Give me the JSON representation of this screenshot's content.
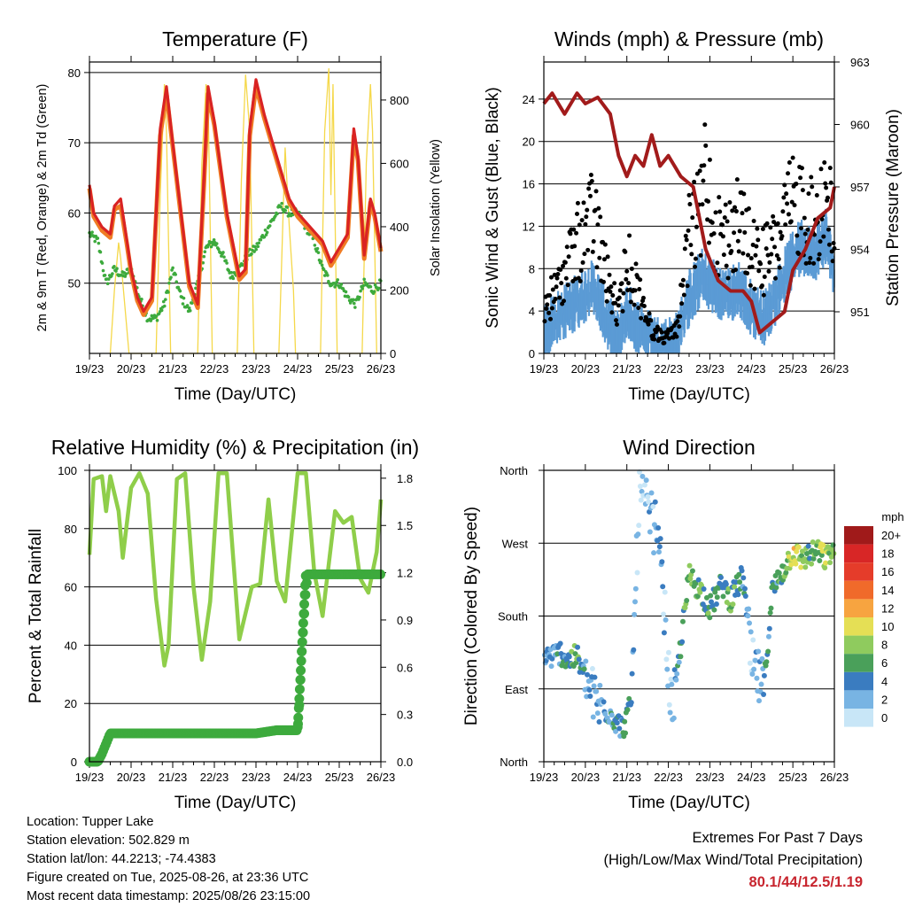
{
  "chart_data": [
    {
      "type": "line",
      "title": "Temperature (F)",
      "xlabel": "Time (Day/UTC)",
      "ylabel": "2m & 9m T (Red, Orange) & 2m Td (Green)",
      "y2label": "Solar Insolation (Yellow)",
      "x_ticks": [
        "19/23",
        "20/23",
        "21/23",
        "22/23",
        "23/23",
        "24/23",
        "25/23",
        "26/23"
      ],
      "y_ticks": [
        50,
        60,
        70,
        80
      ],
      "y2_ticks": [
        0,
        200,
        400,
        600,
        800
      ],
      "ylim": [
        40,
        81.5
      ],
      "y2lim": [
        0,
        920
      ],
      "grid": true,
      "series": [
        {
          "name": "2m T",
          "color": "#d92323",
          "x": [
            0,
            0.1,
            0.3,
            0.5,
            0.6,
            0.75,
            0.9,
            1.0,
            1.15,
            1.3,
            1.5,
            1.7,
            1.85,
            2.0,
            2.2,
            2.4,
            2.6,
            2.75,
            2.85,
            3.0,
            3.3,
            3.6,
            3.75,
            3.85,
            4.0,
            4.2,
            4.4,
            4.6,
            4.8,
            5.0,
            5.3,
            5.6,
            5.8,
            6.0,
            6.2,
            6.35,
            6.45,
            6.6,
            6.75,
            6.85,
            7.0
          ],
          "y": [
            64,
            60,
            58,
            57,
            61,
            62,
            56,
            52,
            48,
            46,
            48,
            72,
            78,
            70,
            60,
            50,
            47,
            65,
            78,
            73,
            60,
            51,
            52,
            72,
            79,
            74,
            70,
            66,
            62,
            60,
            58,
            56,
            53,
            55,
            57,
            72,
            68,
            54,
            62,
            60,
            55
          ]
        },
        {
          "name": "9m T",
          "color": "#f07c24",
          "x": [
            0,
            0.1,
            0.3,
            0.5,
            0.6,
            0.75,
            0.9,
            1.0,
            1.15,
            1.3,
            1.5,
            1.7,
            1.85,
            2.0,
            2.2,
            2.4,
            2.6,
            2.75,
            2.85,
            3.0,
            3.3,
            3.6,
            3.75,
            3.85,
            4.0,
            4.2,
            4.4,
            4.6,
            4.8,
            5.0,
            5.3,
            5.6,
            5.8,
            6.0,
            6.2,
            6.35,
            6.45,
            6.6,
            6.75,
            6.85,
            7.0
          ],
          "y": [
            63.5,
            59.5,
            57.5,
            56.5,
            60.5,
            61,
            55.5,
            51.5,
            47.5,
            45.5,
            47.5,
            71,
            77,
            69.5,
            59.5,
            49.5,
            46.5,
            64,
            77,
            72.5,
            59.5,
            50.5,
            51.5,
            71,
            78,
            73.5,
            69.5,
            65.5,
            61.5,
            59.5,
            57.5,
            55.5,
            52.5,
            54.5,
            56.5,
            71,
            67.5,
            53.5,
            61.5,
            59.5,
            54.5
          ]
        },
        {
          "name": "2m Td",
          "color": "#3daa3d",
          "x": [
            0,
            0.2,
            0.4,
            0.6,
            0.8,
            1.0,
            1.2,
            1.4,
            1.6,
            1.8,
            2.0,
            2.2,
            2.4,
            2.6,
            2.8,
            3.0,
            3.2,
            3.4,
            3.6,
            3.8,
            4.0,
            4.2,
            4.4,
            4.6,
            4.8,
            5.0,
            5.2,
            5.4,
            5.6,
            5.8,
            6.0,
            6.2,
            6.4,
            6.6,
            6.8,
            7.0
          ],
          "y": [
            57,
            56,
            50,
            52,
            51,
            52,
            48,
            45,
            45,
            47,
            52,
            48,
            46,
            50,
            55,
            56,
            54,
            51,
            52,
            54,
            55,
            57,
            59,
            61,
            60,
            60,
            58,
            56,
            52,
            50,
            50,
            48,
            47,
            50,
            49,
            50
          ]
        },
        {
          "name": "Solar Insolation",
          "color": "#f5d84a",
          "axis": "y2",
          "x": [
            0.5,
            0.6,
            0.7,
            0.75,
            0.85,
            0.95,
            1.6,
            1.7,
            1.8,
            1.85,
            1.95,
            2.6,
            2.7,
            2.8,
            2.85,
            2.95,
            3.55,
            3.65,
            3.75,
            3.85,
            3.95,
            4.55,
            4.7,
            4.8,
            4.9,
            4.95,
            5.55,
            5.65,
            5.75,
            5.8,
            5.85,
            5.95,
            6.55,
            6.65,
            6.75,
            6.8,
            6.9
          ],
          "y": [
            0,
            200,
            350,
            300,
            150,
            0,
            0,
            500,
            850,
            700,
            0,
            0,
            600,
            850,
            800,
            0,
            0,
            550,
            880,
            700,
            0,
            0,
            650,
            400,
            200,
            0,
            0,
            700,
            900,
            500,
            850,
            0,
            0,
            600,
            850,
            700,
            0
          ]
        }
      ]
    },
    {
      "type": "scatter",
      "title": "Winds (mph) & Pressure (mb)",
      "xlabel": "Time (Day/UTC)",
      "ylabel": "Sonic Wind & Gust (Blue, Black)",
      "y2label": "Station Pressure (Maroon)",
      "x_ticks": [
        "19/23",
        "20/23",
        "21/23",
        "22/23",
        "23/23",
        "24/23",
        "25/23",
        "26/23"
      ],
      "y_ticks": [
        0,
        4,
        8,
        12,
        16,
        20,
        24
      ],
      "y2_ticks": [
        951,
        954,
        957,
        960,
        963
      ],
      "ylim": [
        0,
        27.5
      ],
      "y2lim": [
        949,
        963
      ],
      "grid": true,
      "series": [
        {
          "name": "Sonic Wind",
          "color": "#5b9bd5",
          "x": [
            0,
            0.3,
            0.6,
            0.9,
            1.2,
            1.5,
            1.8,
            2.0,
            2.3,
            2.6,
            2.9,
            3.2,
            3.5,
            3.8,
            4.1,
            4.4,
            4.7,
            5.0,
            5.3,
            5.6,
            5.9,
            6.2,
            6.5,
            6.8,
            7.0
          ],
          "y": [
            2,
            3,
            4,
            5,
            6,
            3,
            1,
            4,
            2,
            1,
            0.5,
            1,
            5,
            7,
            6,
            5,
            6,
            4,
            3,
            5,
            8,
            10,
            9,
            11,
            7
          ]
        },
        {
          "name": "Gust",
          "color": "#000000",
          "x": [
            0,
            0.3,
            0.6,
            0.9,
            1.2,
            1.5,
            1.8,
            2.0,
            2.3,
            2.6,
            2.9,
            3.2,
            3.5,
            3.8,
            3.9,
            4.1,
            4.4,
            4.7,
            5.0,
            5.3,
            5.6,
            5.9,
            6.2,
            6.5,
            6.8,
            7.0
          ],
          "y": [
            6,
            8,
            12,
            15,
            18,
            10,
            5,
            12,
            8,
            3,
            2,
            3,
            15,
            18,
            25,
            16,
            15,
            17,
            13,
            12,
            14,
            18,
            20,
            16,
            22,
            14
          ]
        },
        {
          "name": "Station Pressure",
          "color": "#a21b1b",
          "axis": "y2",
          "x": [
            0,
            0.2,
            0.5,
            0.8,
            1.0,
            1.3,
            1.6,
            1.8,
            2.0,
            2.2,
            2.4,
            2.6,
            2.8,
            3.0,
            3.3,
            3.6,
            3.9,
            4.2,
            4.5,
            4.8,
            5.0,
            5.2,
            5.5,
            5.8,
            6.0,
            6.3,
            6.6,
            6.9,
            7.0
          ],
          "y": [
            961,
            961.5,
            960.5,
            961.5,
            961,
            961.3,
            960.5,
            958.5,
            957.5,
            958.5,
            958,
            959.5,
            958,
            958.5,
            957.5,
            957,
            954,
            952.5,
            952,
            952,
            951.5,
            950,
            950.5,
            951,
            953,
            954,
            955.5,
            956,
            957
          ]
        }
      ]
    },
    {
      "type": "line",
      "title": "Relative Humidity (%) & Precipitation (in)",
      "xlabel": "Time (Day/UTC)",
      "ylabel": "Percent & Total Rainfall",
      "x_ticks": [
        "19/23",
        "20/23",
        "21/23",
        "22/23",
        "23/23",
        "24/23",
        "25/23",
        "26/23"
      ],
      "y_ticks": [
        0,
        20,
        40,
        60,
        80,
        100
      ],
      "y2_ticks": [
        "0.0",
        "0.3",
        "0.6",
        "0.9",
        "1.2",
        "1.5",
        "1.8"
      ],
      "ylim": [
        0,
        100
      ],
      "y2lim": [
        0,
        1.85
      ],
      "grid": true,
      "series": [
        {
          "name": "Relative Humidity",
          "color": "#8fce4a",
          "x": [
            0,
            0.1,
            0.3,
            0.4,
            0.5,
            0.7,
            0.8,
            1.0,
            1.2,
            1.4,
            1.6,
            1.8,
            1.9,
            2.1,
            2.3,
            2.5,
            2.7,
            2.9,
            3.1,
            3.3,
            3.6,
            3.9,
            4.1,
            4.3,
            4.5,
            4.7,
            5.0,
            5.2,
            5.4,
            5.6,
            5.9,
            6.1,
            6.3,
            6.5,
            6.7,
            6.9,
            7.0
          ],
          "y": [
            71,
            97,
            98,
            86,
            98,
            86,
            70,
            94,
            99,
            92,
            56,
            33,
            40,
            97,
            99,
            60,
            35,
            55,
            99,
            99,
            42,
            60,
            61,
            90,
            62,
            55,
            99,
            99,
            65,
            50,
            86,
            82,
            84,
            63,
            58,
            72,
            90
          ]
        },
        {
          "name": "Total Rainfall",
          "color": "#3daa3d",
          "axis": "y2",
          "x": [
            0,
            0.2,
            0.3,
            0.5,
            1.0,
            2.0,
            3.0,
            4.0,
            4.5,
            5.0,
            5.05,
            5.1,
            5.15,
            5.2,
            5.25,
            6.0,
            7.0
          ],
          "y": [
            0,
            0,
            0.05,
            0.18,
            0.18,
            0.18,
            0.18,
            0.18,
            0.2,
            0.2,
            0.4,
            0.7,
            0.9,
            1.1,
            1.19,
            1.19,
            1.19
          ]
        }
      ]
    },
    {
      "type": "scatter",
      "title": "Wind Direction",
      "xlabel": "Time (Day/UTC)",
      "ylabel": "Direction (Colored By Speed)",
      "x_ticks": [
        "19/23",
        "20/23",
        "21/23",
        "22/23",
        "23/23",
        "24/23",
        "25/23",
        "26/23"
      ],
      "y_ticks": [
        "North",
        "East",
        "South",
        "West",
        "North"
      ],
      "ylim": [
        0,
        360
      ],
      "grid": true,
      "legend": {
        "title": "mph",
        "labels": [
          "20+",
          "18",
          "16",
          "14",
          "12",
          "10",
          "8",
          "6",
          "4",
          "2",
          "0"
        ],
        "colors": [
          "#a01a1a",
          "#d82626",
          "#e53c2a",
          "#f06a2a",
          "#f7a440",
          "#e5df55",
          "#8fcb5e",
          "#4aa05a",
          "#3a7cc0",
          "#78b4e3",
          "#c8e6f7"
        ],
        "position": "right"
      },
      "series": [
        {
          "name": "direction",
          "x": [
            0.2,
            0.4,
            0.6,
            0.8,
            1.0,
            1.3,
            1.6,
            1.9,
            2.1,
            2.3,
            2.6,
            2.8,
            3.0,
            3.1,
            3.5,
            3.8,
            4.0,
            4.3,
            4.5,
            4.8,
            5.0,
            5.3,
            5.5,
            5.8,
            6.0,
            6.2,
            6.4,
            6.6,
            6.8,
            7.0
          ],
          "y": [
            130,
            135,
            125,
            130,
            100,
            70,
            60,
            40,
            70,
            330,
            300,
            270,
            110,
            60,
            230,
            210,
            190,
            220,
            200,
            230,
            120,
            90,
            210,
            240,
            260,
            250,
            255,
            260,
            250,
            265
          ],
          "speed": [
            3,
            4,
            5,
            7,
            3,
            2,
            4,
            4,
            5,
            1,
            2,
            4,
            1,
            2,
            8,
            6,
            5,
            4,
            7,
            4,
            2,
            3,
            4,
            6,
            10,
            8,
            6,
            7,
            9,
            7
          ]
        }
      ]
    }
  ],
  "footer": {
    "location": "Location: Tupper Lake",
    "elevation": "Station elevation: 502.829 m",
    "latlon": "Station lat/lon: 44.2213; -74.4383",
    "created": "Figure created on Tue, 2025-08-26, at 23:36 UTC",
    "recent": "Most recent data timestamp: 2025/08/26 23:15:00",
    "extremes_title": "Extremes For Past 7 Days",
    "extremes_sub": "(High/Low/Max Wind/Total Precipitation)",
    "extremes_value": "80.1/44/12.5/1.19"
  }
}
